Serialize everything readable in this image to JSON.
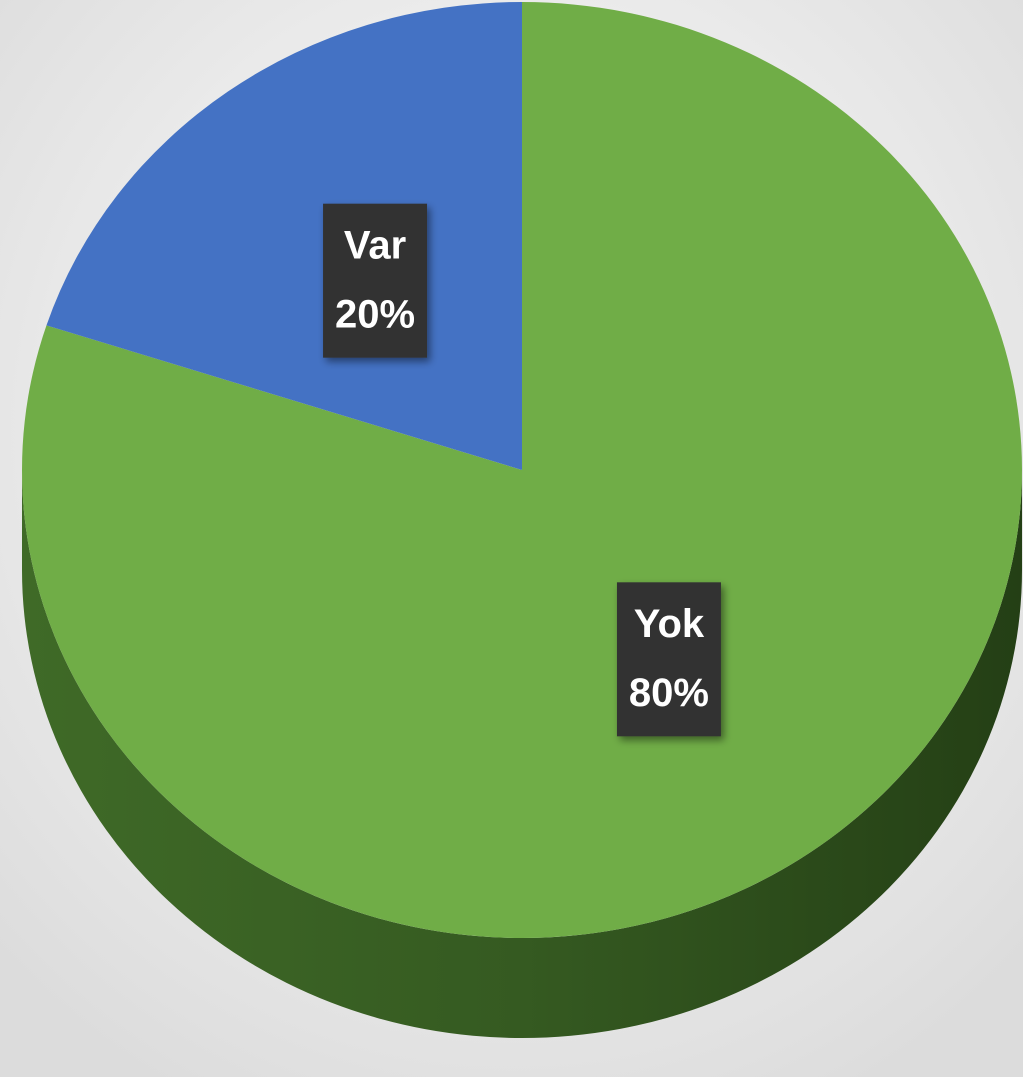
{
  "chart_data": {
    "type": "pie",
    "categories": [
      "Yok",
      "Var"
    ],
    "values": [
      80,
      20
    ],
    "value_labels": [
      "80%",
      "20%"
    ],
    "colors": [
      "#70ad47",
      "#4472c4"
    ]
  }
}
